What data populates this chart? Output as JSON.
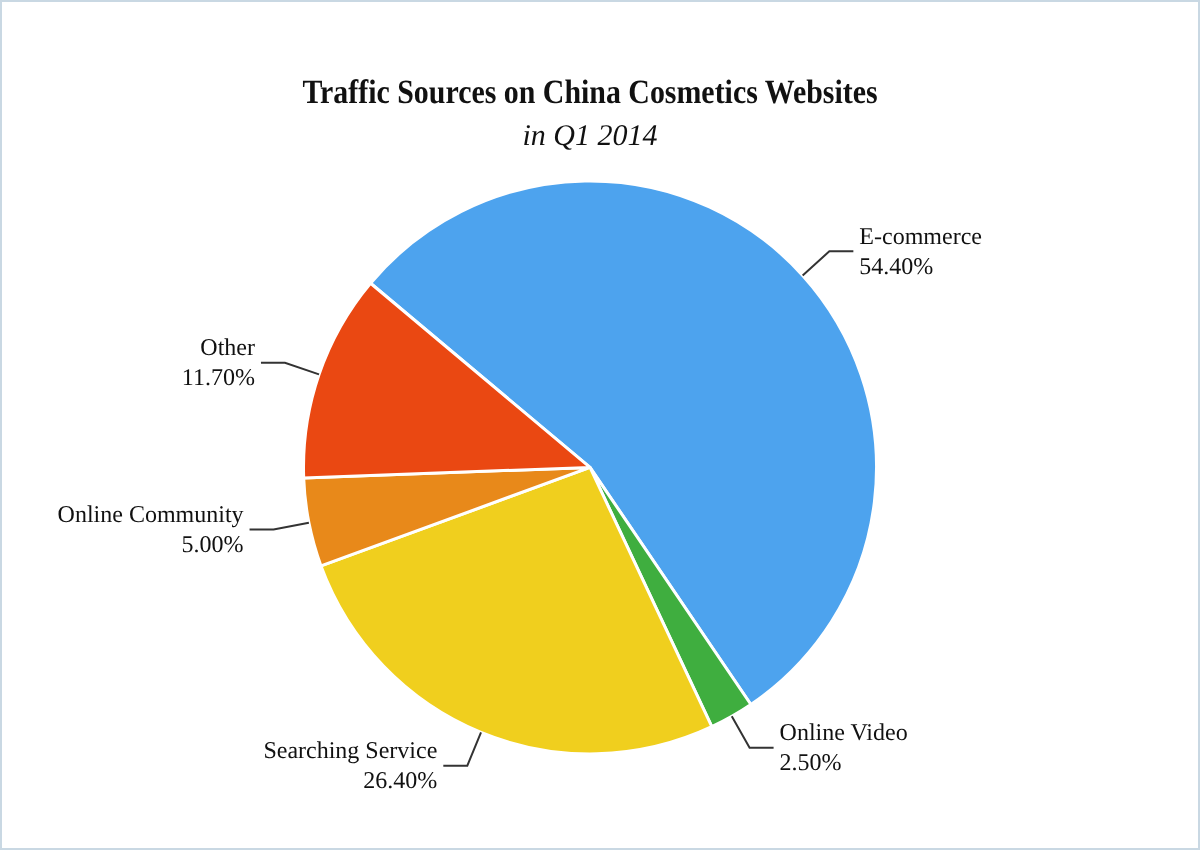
{
  "chart_data": {
    "type": "pie",
    "title": "Traffic Sources on China Cosmetics Websites",
    "subtitle": "in Q1 2014",
    "categories": [
      "E-commerce",
      "Online Video",
      "Searching Service",
      "Online Community",
      "Other"
    ],
    "values": [
      54.4,
      2.5,
      26.4,
      5.0,
      11.7
    ],
    "value_labels": [
      "54.40%",
      "2.50%",
      "26.40%",
      "5.00%",
      "11.70%"
    ],
    "colors": [
      "#4da3ee",
      "#3fae3f",
      "#f0cf1e",
      "#e8891a",
      "#ea4812"
    ],
    "legend": false
  }
}
